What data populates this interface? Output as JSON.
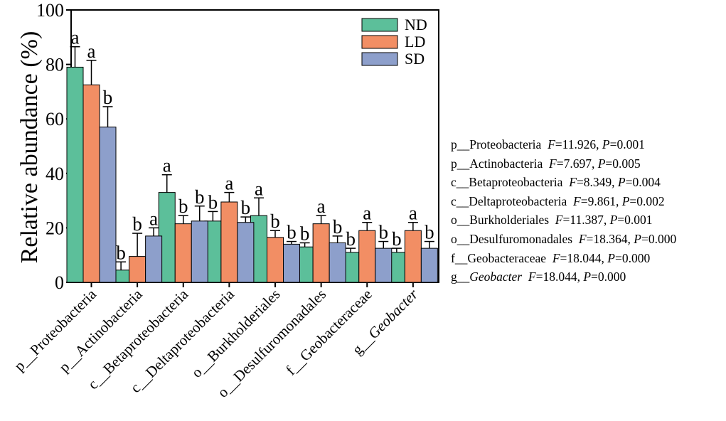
{
  "chart_data": {
    "type": "bar",
    "ylabel": "Relative abundance (%)",
    "ylim": [
      0,
      100
    ],
    "yticks": [
      0,
      20,
      40,
      60,
      80,
      100
    ],
    "categories": [
      {
        "prefix": "p__",
        "name": "Proteobacteria",
        "italic": false
      },
      {
        "prefix": "p__",
        "name": "Actinobacteria",
        "italic": false
      },
      {
        "prefix": "c__",
        "name": "Betaproteobacteria",
        "italic": false
      },
      {
        "prefix": "c__",
        "name": "Deltaproteobacteria",
        "italic": false
      },
      {
        "prefix": "o__",
        "name": "Burkholderiales",
        "italic": false
      },
      {
        "prefix": "o__",
        "name": "Desulfuromonadales",
        "italic": false
      },
      {
        "prefix": "f__",
        "name": "Geobacteraceae",
        "italic": false
      },
      {
        "prefix": "g__",
        "name": "Geobacter",
        "italic": true
      }
    ],
    "series": [
      {
        "name": "ND",
        "color": "#5cbf9a",
        "values": [
          79,
          4.5,
          33,
          22.5,
          24.5,
          13,
          11,
          11
        ],
        "errors": [
          7.5,
          3,
          6.5,
          3.5,
          6.5,
          1.5,
          1.5,
          1.5
        ],
        "letters": [
          "a",
          "b",
          "a",
          "b",
          "a",
          "b",
          "b",
          "b"
        ]
      },
      {
        "name": "LD",
        "color": "#f28e64",
        "values": [
          72.5,
          9.5,
          21.5,
          29.5,
          16.5,
          21.5,
          19,
          19
        ],
        "errors": [
          9,
          8.5,
          3,
          3.5,
          2.5,
          3,
          3,
          3
        ],
        "letters": [
          "a",
          "b",
          "b",
          "a",
          "b",
          "a",
          "a",
          "a"
        ]
      },
      {
        "name": "SD",
        "color": "#8d9fcb",
        "values": [
          57,
          17,
          22.5,
          22,
          14,
          14.5,
          12.5,
          12.5
        ],
        "errors": [
          7.5,
          3,
          5.5,
          2,
          1,
          2.5,
          2.5,
          2.5
        ],
        "letters": [
          "b",
          "a",
          "b",
          "b",
          "b",
          "b",
          "b",
          "b"
        ]
      }
    ],
    "legend_position": "top-right",
    "stats": [
      {
        "prefix": "p__",
        "name": "Proteobacteria",
        "italic": false,
        "F": "11.926",
        "P": "0.001"
      },
      {
        "prefix": "p__",
        "name": "Actinobacteria",
        "italic": false,
        "F": "7.697",
        "P": "0.005"
      },
      {
        "prefix": "c__",
        "name": "Betaproteobacteria",
        "italic": false,
        "F": "8.349",
        "P": "0.004"
      },
      {
        "prefix": "c__",
        "name": "Deltaproteobacteria",
        "italic": false,
        "F": "9.861",
        "P": "0.002"
      },
      {
        "prefix": "o__",
        "name": "Burkholderiales",
        "italic": false,
        "F": "11.387",
        "P": "0.001"
      },
      {
        "prefix": "o__",
        "name": "Desulfuromonadales",
        "italic": false,
        "F": "18.364",
        "P": "0.000"
      },
      {
        "prefix": "f__",
        "name": "Geobacteraceae",
        "italic": false,
        "F": "18.044",
        "P": "0.000"
      },
      {
        "prefix": "g__",
        "name": "Geobacter",
        "italic": true,
        "F": "18.044",
        "P": "0.000"
      }
    ]
  }
}
